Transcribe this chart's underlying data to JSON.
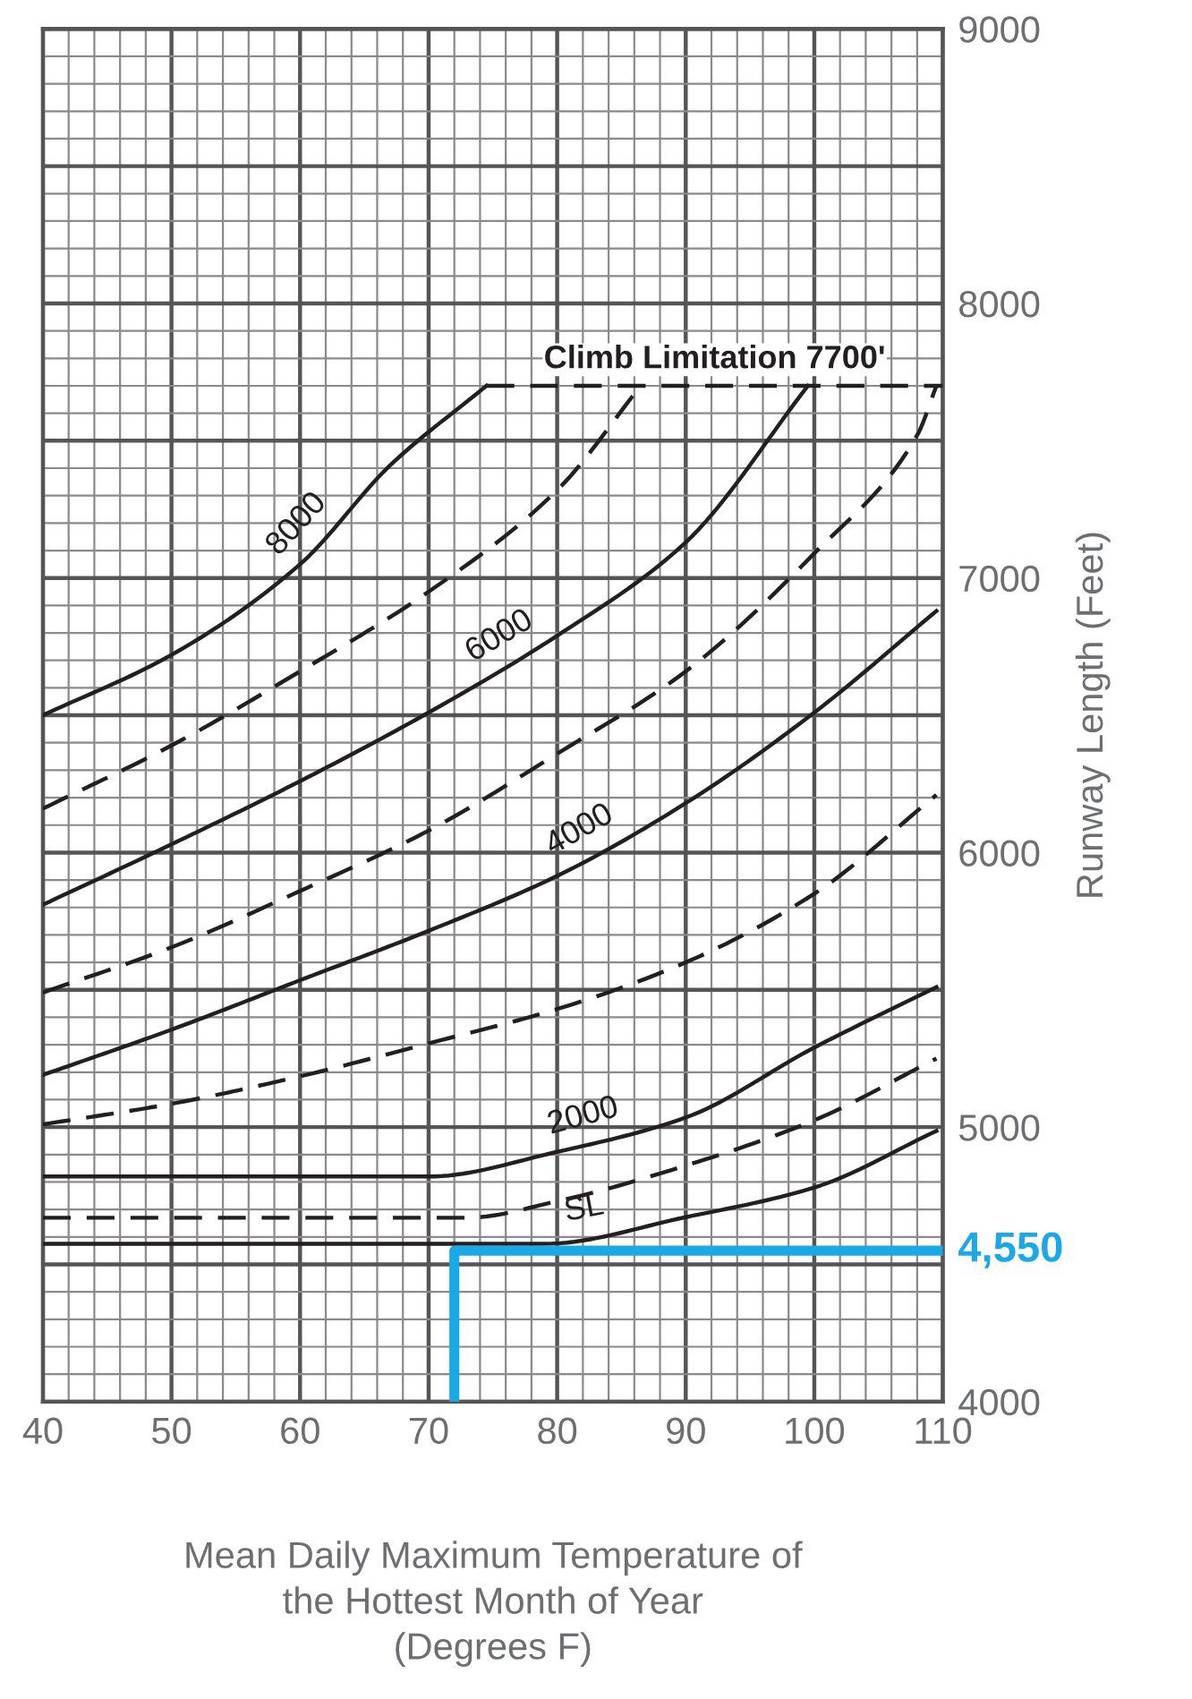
{
  "chart_data": {
    "type": "line",
    "xlabel": "Mean Daily Maximum Temperature of\nthe Hottest Month of Year\n(Degrees F)",
    "ylabel": "Runway Length (Feet)",
    "xlim": [
      40,
      110
    ],
    "xticks": [
      40,
      50,
      60,
      70,
      80,
      90,
      100,
      110
    ],
    "ylim": [
      4000,
      9000
    ],
    "yticks": [
      4000,
      5000,
      6000,
      7000,
      8000,
      9000
    ],
    "grid": true,
    "series": [
      {
        "name": "8000",
        "color": "#231f20",
        "line_style": "solid",
        "x": [
          40,
          50,
          60,
          67,
          74.5
        ],
        "values": [
          6500,
          6720,
          7050,
          7410,
          7700
        ]
      },
      {
        "color": "#231f20",
        "line_style": "dashed",
        "x": [
          40,
          50,
          60,
          70,
          80,
          86.5
        ],
        "values": [
          6160,
          6390,
          6660,
          6950,
          7320,
          7700
        ]
      },
      {
        "name": "6000",
        "color": "#231f20",
        "line_style": "solid",
        "x": [
          40,
          50,
          60,
          70,
          80,
          90,
          99.5
        ],
        "values": [
          5810,
          6030,
          6260,
          6510,
          6790,
          7130,
          7700
        ]
      },
      {
        "color": "#231f20",
        "line_style": "dashed",
        "x": [
          40,
          50,
          60,
          70,
          80,
          90,
          100,
          108,
          109.5
        ],
        "values": [
          5490,
          5655,
          5860,
          6080,
          6360,
          6660,
          7090,
          7520,
          7700
        ]
      },
      {
        "name": "4000",
        "color": "#231f20",
        "line_style": "solid",
        "x": [
          40,
          50,
          60,
          70,
          80,
          90,
          100,
          109.5
        ],
        "values": [
          5190,
          5355,
          5535,
          5715,
          5915,
          6180,
          6510,
          6880
        ]
      },
      {
        "color": "#231f20",
        "line_style": "dashed",
        "x": [
          40,
          50,
          60,
          70,
          80,
          90,
          100,
          109.5
        ],
        "values": [
          5010,
          5085,
          5185,
          5305,
          5430,
          5600,
          5850,
          6210
        ]
      },
      {
        "name": "2000",
        "color": "#231f20",
        "line_style": "solid",
        "x": [
          40,
          70,
          80,
          90,
          100,
          109.5
        ],
        "values": [
          4820,
          4820,
          4910,
          5035,
          5290,
          5510
        ]
      },
      {
        "color": "#231f20",
        "line_style": "dashed",
        "x": [
          40,
          73,
          80,
          90,
          100,
          109.5
        ],
        "values": [
          4670,
          4670,
          4730,
          4860,
          5025,
          5250
        ]
      },
      {
        "name": "SL",
        "color": "#231f20",
        "line_style": "solid",
        "x": [
          40,
          79,
          90,
          100,
          109.5
        ],
        "values": [
          4575,
          4575,
          4672,
          4780,
          4986
        ]
      },
      {
        "name": "Climb Limitation 7700'",
        "color": "#231f20",
        "line_style": "dashed",
        "x": [
          74.5,
          110
        ],
        "values": [
          7700,
          7700
        ]
      },
      {
        "color": "#1aa9e6",
        "line_style": "solid",
        "x": [
          72,
          72,
          110
        ],
        "values": [
          4000,
          4550,
          4550
        ]
      }
    ],
    "annotations": [
      {
        "text": "4,550",
        "x": 110,
        "y": 4550
      }
    ]
  }
}
